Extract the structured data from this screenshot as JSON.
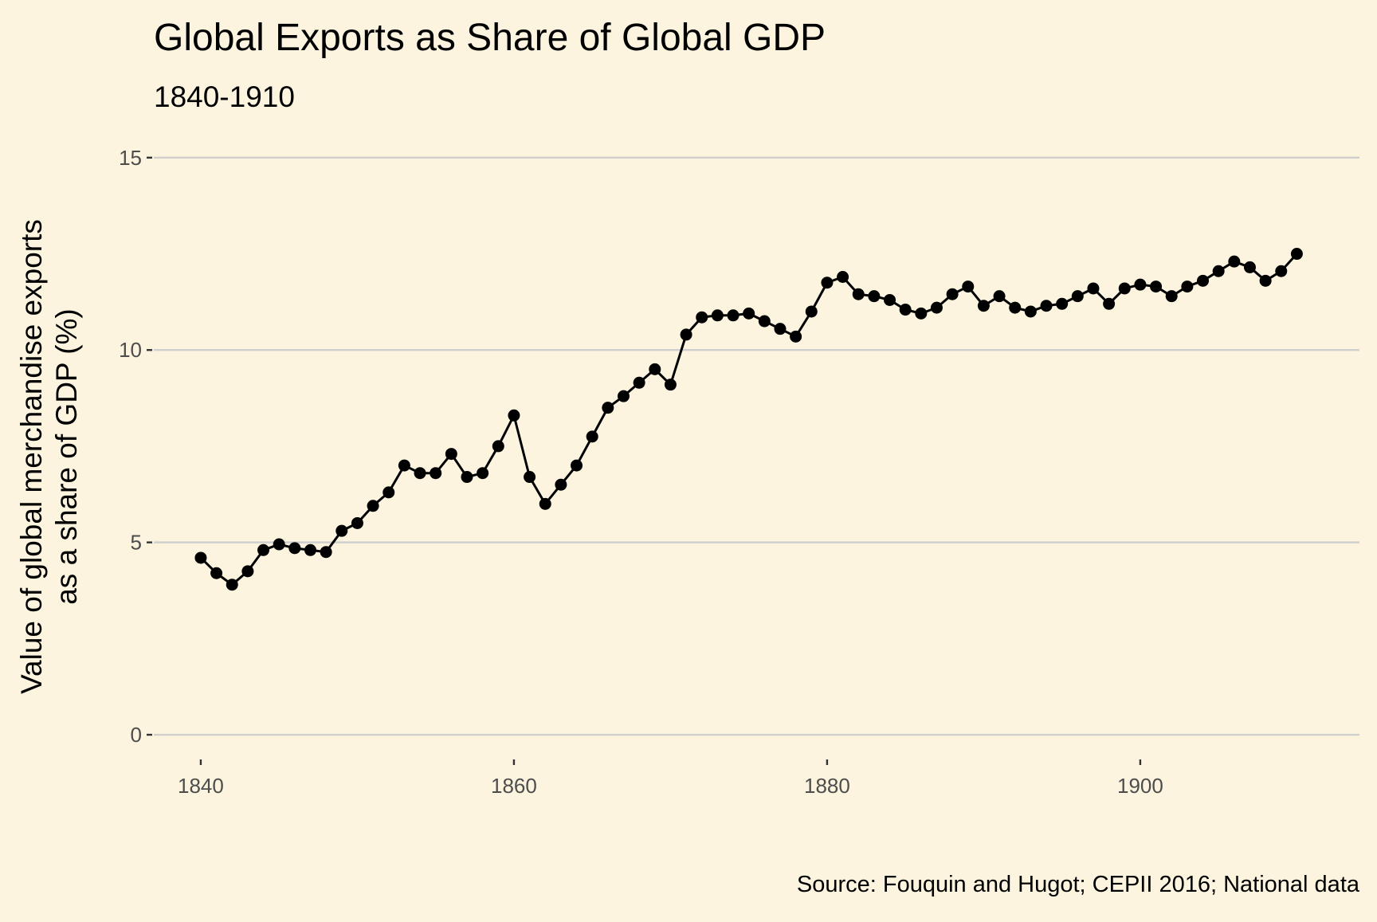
{
  "chart_data": {
    "type": "line",
    "title": "Global Exports as Share of Global GDP",
    "subtitle": "1840-1910",
    "xlabel": "",
    "ylabel": [
      "Value of global merchandise exports",
      "as a share of GDP (%)"
    ],
    "caption": "Source: Fouquin and Hugot; CEPII 2016; National data",
    "xlim": [
      1837,
      1914
    ],
    "ylim": [
      -0.6,
      15.1
    ],
    "x_ticks": [
      1840,
      1860,
      1880,
      1900
    ],
    "y_ticks": [
      0,
      5,
      10,
      15
    ],
    "grid": "horizontal major",
    "legend": "none",
    "colors": {
      "background": "#fcf4de",
      "series": "#000000",
      "grid": "#cfcfcf"
    },
    "series": [
      {
        "x": [
          1840,
          1841,
          1842,
          1843,
          1844,
          1845,
          1846,
          1847,
          1848,
          1849,
          1850,
          1851,
          1852,
          1853,
          1854,
          1855,
          1856,
          1857,
          1858,
          1859,
          1860,
          1861,
          1862,
          1863,
          1864,
          1865,
          1866,
          1867,
          1868,
          1869,
          1870,
          1871,
          1872,
          1873,
          1874,
          1875,
          1876,
          1877,
          1878,
          1879,
          1880,
          1881,
          1882,
          1883,
          1884,
          1885,
          1886,
          1887,
          1888,
          1889,
          1890,
          1891,
          1892,
          1893,
          1894,
          1895,
          1896,
          1897,
          1898,
          1899,
          1900,
          1901,
          1902,
          1903,
          1904,
          1905,
          1906,
          1907,
          1908,
          1909,
          1910
        ],
        "y": [
          4.6,
          4.2,
          3.9,
          4.25,
          4.8,
          4.95,
          4.85,
          4.8,
          4.75,
          5.3,
          5.5,
          5.95,
          6.3,
          7.0,
          6.8,
          6.8,
          7.3,
          6.7,
          6.8,
          7.5,
          8.3,
          6.7,
          6.0,
          6.5,
          7.0,
          7.75,
          8.5,
          8.8,
          9.15,
          9.5,
          9.1,
          10.4,
          10.85,
          10.9,
          10.9,
          10.95,
          10.75,
          10.55,
          10.35,
          11.0,
          11.75,
          11.9,
          11.45,
          11.4,
          11.3,
          11.05,
          10.95,
          11.1,
          11.45,
          11.65,
          11.15,
          11.4,
          11.1,
          11.0,
          11.15,
          11.2,
          11.4,
          11.6,
          11.2,
          11.6,
          11.7,
          11.65,
          11.4,
          11.65,
          11.8,
          12.05,
          12.3,
          12.15,
          11.8,
          12.05,
          12.5
        ]
      }
    ]
  }
}
